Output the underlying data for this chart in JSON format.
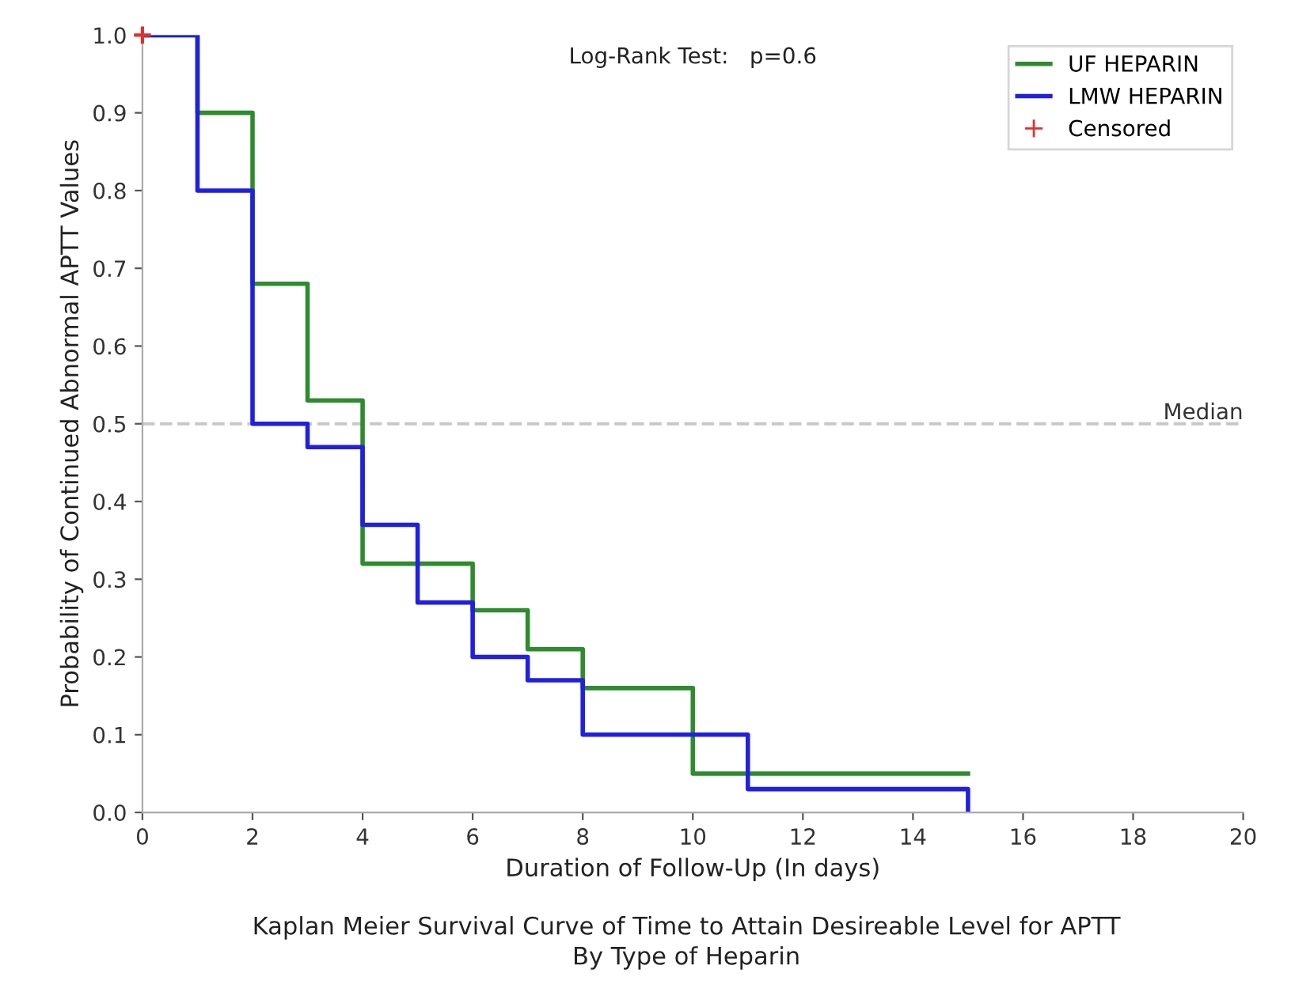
{
  "chart_data": {
    "type": "step",
    "title": "Kaplan Meier Survival Curve of Time to Attain Desireable Level for APTT",
    "subtitle": "By Type of Heparin",
    "xlabel": "Duration of Follow-Up (In days)",
    "ylabel": "Probability of Continued Abnormal APTT Values",
    "series": [
      {
        "name": "UF HEPARIN",
        "color": "#2e8b2e",
        "x": [
          0,
          1,
          2,
          3,
          4,
          6,
          7,
          8,
          10,
          15
        ],
        "values": [
          1.0,
          0.9,
          0.68,
          0.53,
          0.32,
          0.26,
          0.21,
          0.16,
          0.05,
          0.05
        ]
      },
      {
        "name": "LMW HEPARIN",
        "color": "#2020e0",
        "x": [
          0,
          1,
          2,
          3,
          4,
          5,
          6,
          7,
          8,
          11,
          15
        ],
        "values": [
          1.0,
          0.8,
          0.5,
          0.47,
          0.37,
          0.27,
          0.2,
          0.17,
          0.1,
          0.03,
          0.0
        ]
      },
      {
        "name": "Censored",
        "type": "scatter",
        "marker": "cross",
        "color": "#e03030",
        "x": [
          0
        ],
        "values": [
          1.0
        ]
      }
    ],
    "xlim": [
      0,
      20
    ],
    "xticks": [
      0,
      2,
      4,
      6,
      8,
      10,
      12,
      14,
      16,
      18,
      20
    ],
    "ylim": [
      0,
      1.0
    ],
    "yticks": [
      {
        "value": 0,
        "label": "0.0"
      },
      {
        "value": 0.1,
        "label": "0.1"
      },
      {
        "value": 0.2,
        "label": "0.2"
      },
      {
        "value": 0.3,
        "label": "0.3"
      },
      {
        "value": 0.4,
        "label": "0.4"
      },
      {
        "value": 0.5,
        "label": "0.5"
      },
      {
        "value": 0.6,
        "label": "0.6"
      },
      {
        "value": 0.7,
        "label": "0.7"
      },
      {
        "value": 0.8,
        "label": "0.8"
      },
      {
        "value": 0.9,
        "label": "0.9"
      },
      {
        "value": 1.0,
        "label": "1.0"
      }
    ],
    "ref_lines": [
      {
        "axis": "y",
        "value": 0.5,
        "label": "Median",
        "color": "#c8c8c8",
        "line_style": "dashed"
      }
    ],
    "annotations": [
      "Log-Rank Test:   p=0.6"
    ],
    "grid": false,
    "legend": "top right"
  }
}
